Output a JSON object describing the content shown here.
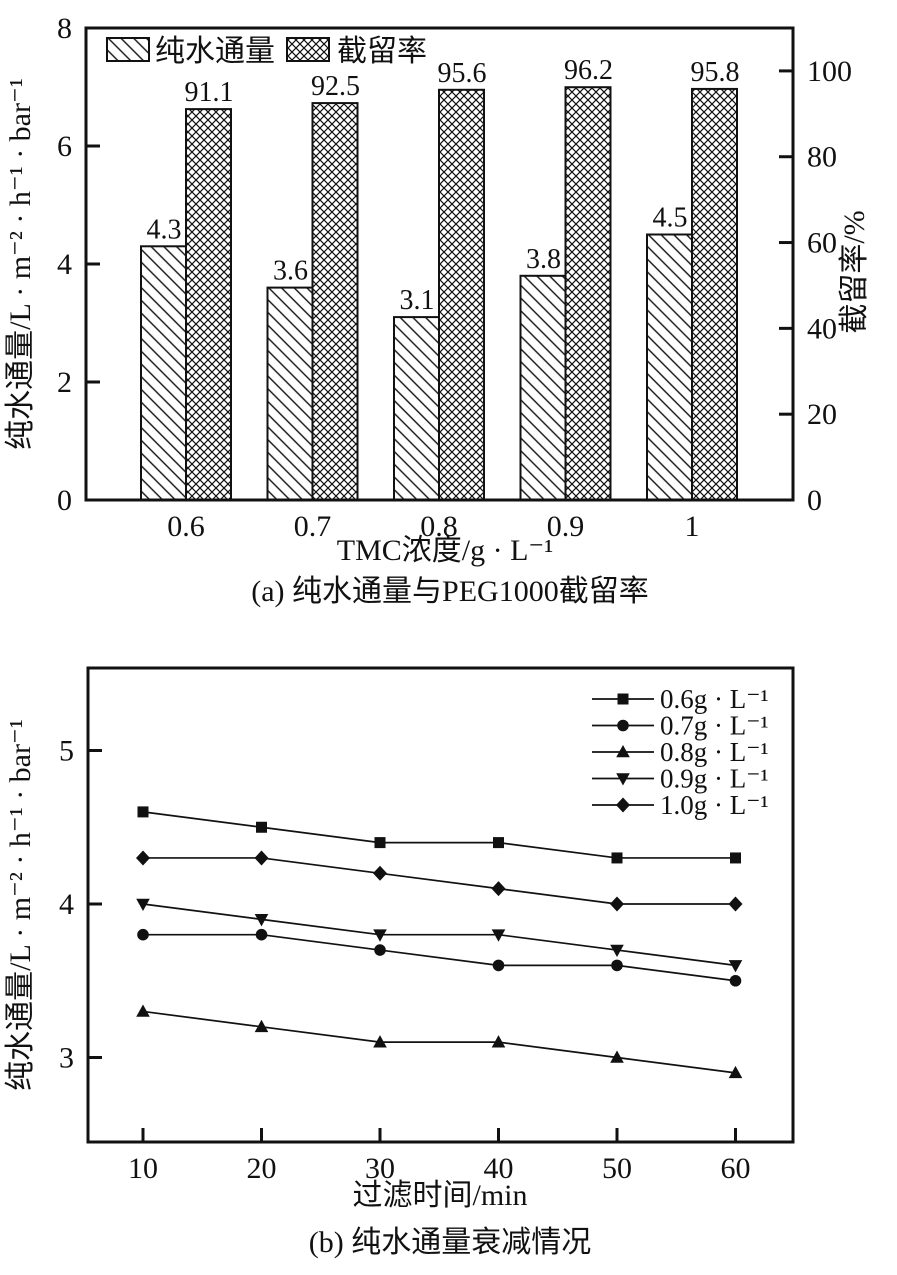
{
  "figure": {
    "background": "#ffffff",
    "ink": "#111111"
  },
  "chart_data": [
    {
      "id": "a",
      "type": "bar",
      "caption": "(a) 纯水通量与PEG1000截留率",
      "xlabel": "TMC浓度/g · L⁻¹",
      "ylabel_left": "纯水通量/L · m⁻² · h⁻¹ · bar⁻¹",
      "ylabel_right": "截留率/%",
      "categories": [
        "0.6",
        "0.7",
        "0.8",
        "0.9",
        "1"
      ],
      "series": [
        {
          "name": "纯水通量",
          "axis": "left",
          "style": "diagonal-hatch",
          "values": [
            4.3,
            3.6,
            3.1,
            3.8,
            4.5
          ],
          "labels": [
            "4.3",
            "3.6",
            "3.1",
            "3.8",
            "4.5"
          ]
        },
        {
          "name": "截留率",
          "axis": "right",
          "style": "cross-hatch",
          "values": [
            91.1,
            92.5,
            95.6,
            96.2,
            95.8
          ],
          "labels": [
            "91.1",
            "92.5",
            "95.6",
            "96.2",
            "95.8"
          ]
        }
      ],
      "left_axis": {
        "min": 0,
        "max": 8,
        "ticks": [
          "0",
          "2",
          "4",
          "6",
          "8"
        ]
      },
      "right_axis": {
        "min": 0,
        "max": 110,
        "ticks": [
          "0",
          "20",
          "40",
          "60",
          "80",
          "100"
        ]
      },
      "legend_position": "top-inside",
      "grid": false
    },
    {
      "id": "b",
      "type": "line",
      "caption": "(b) 纯水通量衰减情况",
      "xlabel": "过滤时间/min",
      "ylabel": "纯水通量/L · m⁻² · h⁻¹ · bar⁻¹",
      "x": [
        10,
        20,
        30,
        40,
        50,
        60
      ],
      "x_tick_labels": [
        "10",
        "20",
        "30",
        "40",
        "50",
        "60"
      ],
      "series": [
        {
          "name": "0.6g · L⁻¹",
          "marker": "square",
          "values": [
            4.6,
            4.5,
            4.4,
            4.4,
            4.3,
            4.3
          ]
        },
        {
          "name": "0.7g · L⁻¹",
          "marker": "circle",
          "values": [
            3.8,
            3.8,
            3.7,
            3.6,
            3.6,
            3.5
          ]
        },
        {
          "name": "0.8g · L⁻¹",
          "marker": "triangle-up",
          "values": [
            3.3,
            3.2,
            3.1,
            3.1,
            3.0,
            2.9
          ]
        },
        {
          "name": "0.9g · L⁻¹",
          "marker": "triangle-down",
          "values": [
            4.0,
            3.9,
            3.8,
            3.8,
            3.7,
            3.6
          ]
        },
        {
          "name": "1.0g · L⁻¹",
          "marker": "diamond",
          "values": [
            4.3,
            4.3,
            4.2,
            4.1,
            4.0,
            4.0
          ]
        }
      ],
      "y_axis": {
        "min": 2.45,
        "max": 5.55,
        "ticks": [
          "3",
          "4",
          "5"
        ]
      },
      "x_axis": {
        "min": 5.4,
        "max": 65
      },
      "legend_position": "top-right-inside",
      "grid": false
    }
  ]
}
